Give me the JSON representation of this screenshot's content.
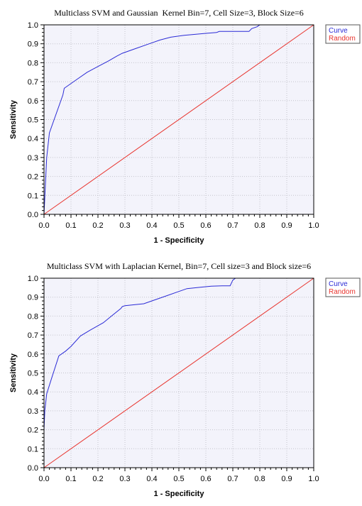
{
  "colors": {
    "curve": "#2b2bd6",
    "random": "#e8342e",
    "plot_background": "#f3f3fb",
    "grid": "#c4c4cc"
  },
  "chart_data": [
    {
      "type": "line",
      "title": "Multiclass SVM and Gaussian  Kernel Bin=7, Cell Size=3, Block Size=6",
      "xlabel": "1 - Specificity",
      "ylabel": "Sensitivity",
      "xlim": [
        0,
        1
      ],
      "ylim": [
        0,
        1
      ],
      "x_ticks": [
        "0.0",
        "0.1",
        "0.2",
        "0.3",
        "0.4",
        "0.5",
        "0.6",
        "0.7",
        "0.8",
        "0.9",
        "1.0"
      ],
      "y_ticks": [
        "0.0",
        "0.1",
        "0.2",
        "0.3",
        "0.4",
        "0.5",
        "0.6",
        "0.7",
        "0.8",
        "0.9",
        "1.0"
      ],
      "grid": true,
      "legend_position": "top-right, outside plot",
      "series": [
        {
          "name": "Curve",
          "x": [
            0.0,
            0.005,
            0.01,
            0.02,
            0.07,
            0.075,
            0.12,
            0.16,
            0.2,
            0.24,
            0.27,
            0.29,
            0.34,
            0.39,
            0.43,
            0.47,
            0.52,
            0.56,
            0.6,
            0.64,
            0.65,
            0.7,
            0.76,
            0.77,
            0.79,
            0.8,
            1.0
          ],
          "y": [
            0.0,
            0.15,
            0.3,
            0.43,
            0.63,
            0.665,
            0.71,
            0.75,
            0.78,
            0.81,
            0.835,
            0.85,
            0.875,
            0.9,
            0.92,
            0.935,
            0.945,
            0.95,
            0.955,
            0.96,
            0.965,
            0.965,
            0.965,
            0.98,
            0.99,
            1.0,
            1.0
          ]
        },
        {
          "name": "Random",
          "x": [
            0,
            1
          ],
          "y": [
            0,
            1
          ]
        }
      ]
    },
    {
      "type": "line",
      "title": "Multiclass SVM with Laplacian Kernel, Bin=7, Cell size=3 and Block size=6",
      "xlabel": "1 - Specificity",
      "ylabel": "Sensitivity",
      "xlim": [
        0,
        1
      ],
      "ylim": [
        0,
        1
      ],
      "x_ticks": [
        "0.0",
        "0.1",
        "0.2",
        "0.3",
        "0.4",
        "0.5",
        "0.6",
        "0.7",
        "0.8",
        "0.9",
        "1.0"
      ],
      "y_ticks": [
        "0.0",
        "0.1",
        "0.2",
        "0.3",
        "0.4",
        "0.5",
        "0.6",
        "0.7",
        "0.8",
        "0.9",
        "1.0"
      ],
      "grid": true,
      "legend_position": "top-right, outside plot",
      "series": [
        {
          "name": "Curve",
          "x": [
            0.0,
            0.003,
            0.01,
            0.03,
            0.055,
            0.08,
            0.1,
            0.135,
            0.17,
            0.22,
            0.25,
            0.285,
            0.29,
            0.3,
            0.37,
            0.4,
            0.45,
            0.5,
            0.53,
            0.58,
            0.62,
            0.66,
            0.69,
            0.7,
            0.71,
            1.0
          ],
          "y": [
            0.2,
            0.3,
            0.39,
            0.48,
            0.59,
            0.615,
            0.64,
            0.695,
            0.725,
            0.765,
            0.8,
            0.84,
            0.85,
            0.855,
            0.865,
            0.88,
            0.905,
            0.93,
            0.945,
            0.952,
            0.958,
            0.96,
            0.96,
            0.99,
            1.0,
            1.0
          ]
        },
        {
          "name": "Random",
          "x": [
            0,
            1
          ],
          "y": [
            0,
            1
          ]
        }
      ]
    }
  ]
}
